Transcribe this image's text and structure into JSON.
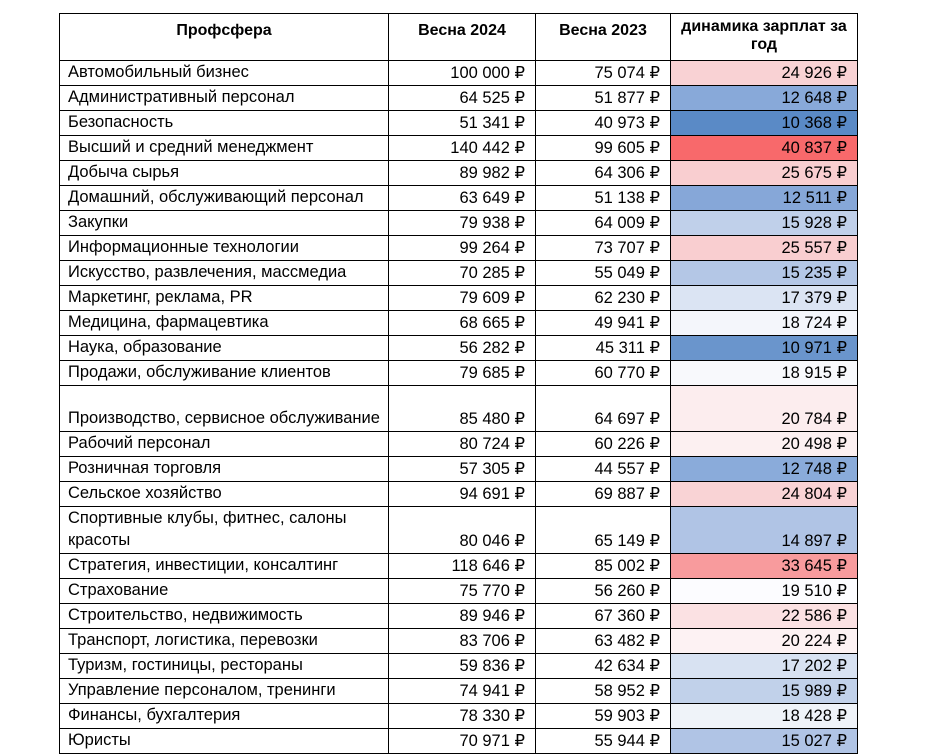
{
  "headers": {
    "sphere": "Профсфера",
    "spring2024": "Весна 2024",
    "spring2023": "Весна 2023",
    "trend": "динамика зарплат за год"
  },
  "rows": [
    {
      "name": "Автомобильный бизнес",
      "s2024": "100 000 ₽",
      "s2023": "75 074 ₽",
      "delta": "24 926 ₽",
      "color": "#f9d2d4"
    },
    {
      "name": "Административный персонал",
      "s2024": "64 525 ₽",
      "s2023": "51 877 ₽",
      "delta": "12 648 ₽",
      "color": "#88a9d9"
    },
    {
      "name": "Безопасность",
      "s2024": "51 341 ₽",
      "s2023": "40 973 ₽",
      "delta": "10 368 ₽",
      "color": "#5a8ac6"
    },
    {
      "name": "Высший и средний менеджмент",
      "s2024": "140 442 ₽",
      "s2023": "99 605 ₽",
      "delta": "40 837 ₽",
      "color": "#f8696b"
    },
    {
      "name": "Добыча сырья",
      "s2024": "89 982 ₽",
      "s2023": "64 306 ₽",
      "delta": "25 675 ₽",
      "color": "#f9ced0"
    },
    {
      "name": "Домашний, обслуживающий персонал",
      "s2024": "63 649 ₽",
      "s2023": "51 138 ₽",
      "delta": "12 511 ₽",
      "color": "#86a7d8"
    },
    {
      "name": "Закупки",
      "s2024": "79 938 ₽",
      "s2023": "64 009 ₽",
      "delta": "15 928 ₽",
      "color": "#c0d0ea"
    },
    {
      "name": "Информационные технологии",
      "s2024": "99 264 ₽",
      "s2023": "73 707 ₽",
      "delta": "25 557 ₽",
      "color": "#f9ced0"
    },
    {
      "name": "Искусство, развлечения, массмедиа",
      "s2024": "70 285 ₽",
      "s2023": "55 049 ₽",
      "delta": "15 235 ₽",
      "color": "#b4c7e6"
    },
    {
      "name": "Маркетинг, реклама, PR",
      "s2024": "79 609 ₽",
      "s2023": "62 230 ₽",
      "delta": "17 379 ₽",
      "color": "#dbe4f3"
    },
    {
      "name": "Медицина, фармацевтика",
      "s2024": "68 665 ₽",
      "s2023": "49 941 ₽",
      "delta": "18 724 ₽",
      "color": "#f4f6fb"
    },
    {
      "name": "Наука, образование",
      "s2024": "56 282 ₽",
      "s2023": "45 311 ₽",
      "delta": "10 971 ₽",
      "color": "#6a95cc"
    },
    {
      "name": "Продажи, обслуживание клиентов",
      "s2024": "79 685 ₽",
      "s2023": "60 770 ₽",
      "delta": "18 915 ₽",
      "color": "#f8f9fc"
    },
    {
      "name": "Производство, сервисное обслуживание",
      "s2024": "85 480 ₽",
      "s2023": "64 697 ₽",
      "delta": "20 784 ₽",
      "color": "#fcedee",
      "tall": true
    },
    {
      "name": "Рабочий персонал",
      "s2024": "80 724 ₽",
      "s2023": "60 226 ₽",
      "delta": "20 498 ₽",
      "color": "#fcf0f1"
    },
    {
      "name": "Розничная торговля",
      "s2024": "57 305 ₽",
      "s2023": "44 557 ₽",
      "delta": "12 748 ₽",
      "color": "#8aabda"
    },
    {
      "name": "Сельское хозяйство",
      "s2024": "94 691 ₽",
      "s2023": "69 887 ₽",
      "delta": "24 804 ₽",
      "color": "#f9d3d5"
    },
    {
      "name": "Спортивные клубы, фитнес, салоны красоты",
      "s2024": "80 046 ₽",
      "s2023": "65 149 ₽",
      "delta": "14 897 ₽",
      "color": "#b0c4e5",
      "tall": true
    },
    {
      "name": "Стратегия, инвестиции, консалтинг",
      "s2024": "118 646 ₽",
      "s2023": "85 002 ₽",
      "delta": "33 645 ₽",
      "color": "#f89b9d"
    },
    {
      "name": "Страхование",
      "s2024": "75 770 ₽",
      "s2023": "56 260 ₽",
      "delta": "19 510 ₽",
      "color": "#fcfcff"
    },
    {
      "name": "Строительство, недвижимость",
      "s2024": "89 946 ₽",
      "s2023": "67 360 ₽",
      "delta": "22 586 ₽",
      "color": "#fbe1e3"
    },
    {
      "name": "Транспорт, логистика, перевозки",
      "s2024": "83 706 ₽",
      "s2023": "63 482 ₽",
      "delta": "20 224 ₽",
      "color": "#fdf2f3"
    },
    {
      "name": "Туризм, гостиницы, рестораны",
      "s2024": "59 836 ₽",
      "s2023": "42 634 ₽",
      "delta": "17 202 ₽",
      "color": "#d8e2f2"
    },
    {
      "name": "Управление персоналом, тренинги",
      "s2024": "74 941 ₽",
      "s2023": "58 952 ₽",
      "delta": "15 989 ₽",
      "color": "#c1d1ea"
    },
    {
      "name": "Финансы, бухгалтерия",
      "s2024": "78 330 ₽",
      "s2023": "59 903 ₽",
      "delta": "18 428 ₽",
      "color": "#eff3f9"
    },
    {
      "name": "Юристы",
      "s2024": "70 971 ₽",
      "s2023": "55 944 ₽",
      "delta": "15 027 ₽",
      "color": "#b0c4e5"
    }
  ]
}
